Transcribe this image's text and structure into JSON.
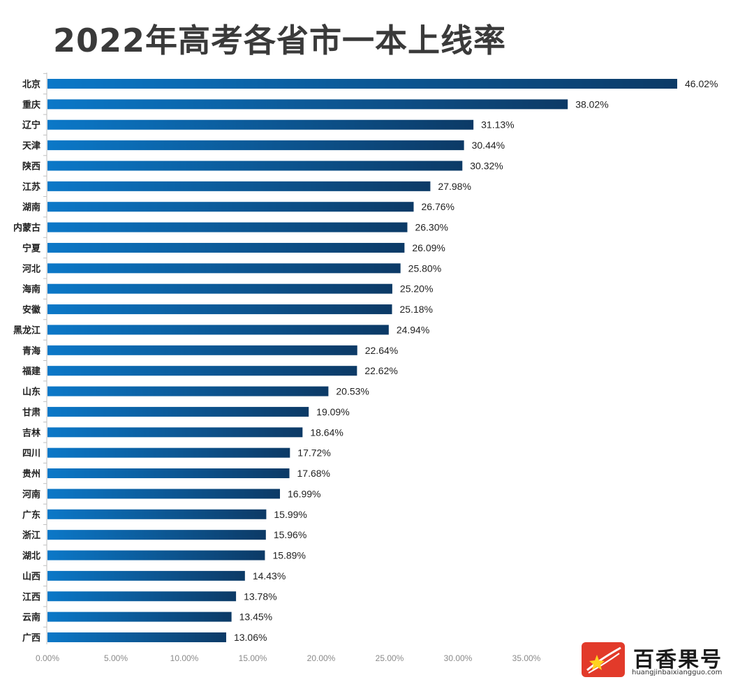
{
  "chart_data": {
    "type": "bar",
    "orientation": "horizontal",
    "title": "2022年高考各省市一本上线率",
    "xlabel": "",
    "ylabel": "",
    "xlim": [
      0,
      40
    ],
    "ticks": [
      "0.00%",
      "5.00%",
      "10.00%",
      "15.00%",
      "20.00%",
      "25.00%",
      "30.00%",
      "35.00%"
    ],
    "tick_values": [
      0,
      5,
      10,
      15,
      20,
      25,
      30,
      35
    ],
    "categories": [
      "北京",
      "重庆",
      "辽宁",
      "天津",
      "陕西",
      "江苏",
      "湖南",
      "内蒙古",
      "宁夏",
      "河北",
      "海南",
      "安徽",
      "黑龙江",
      "青海",
      "福建",
      "山东",
      "甘肃",
      "吉林",
      "四川",
      "贵州",
      "河南",
      "广东",
      "浙江",
      "湖北",
      "山西",
      "江西",
      "云南",
      "广西"
    ],
    "values": [
      46.02,
      38.02,
      31.13,
      30.44,
      30.32,
      27.98,
      26.76,
      26.3,
      26.09,
      25.8,
      25.2,
      25.18,
      24.94,
      22.64,
      22.62,
      20.53,
      19.09,
      18.64,
      17.72,
      17.68,
      16.99,
      15.99,
      15.96,
      15.89,
      14.43,
      13.78,
      13.45,
      13.06
    ],
    "value_labels": [
      "46.02%",
      "38.02%",
      "31.13%",
      "30.44%",
      "30.32%",
      "27.98%",
      "26.76%",
      "26.30%",
      "26.09%",
      "25.80%",
      "25.20%",
      "25.18%",
      "24.94%",
      "22.64%",
      "22.62%",
      "20.53%",
      "19.09%",
      "18.64%",
      "17.72%",
      "17.68%",
      "16.99%",
      "15.99%",
      "15.96%",
      "15.89%",
      "14.43%",
      "13.78%",
      "13.45%",
      "13.06%"
    ],
    "grid": false,
    "legend": "none"
  },
  "colors": {
    "bar_start": "#0b78c8",
    "bar_end": "#0c3a66",
    "axis": "#bfbfbf"
  },
  "watermark": {
    "brand": "百香果号",
    "url": "huangjinbaixiangguo.com",
    "logo_icon": "sparkle-star-icon"
  }
}
